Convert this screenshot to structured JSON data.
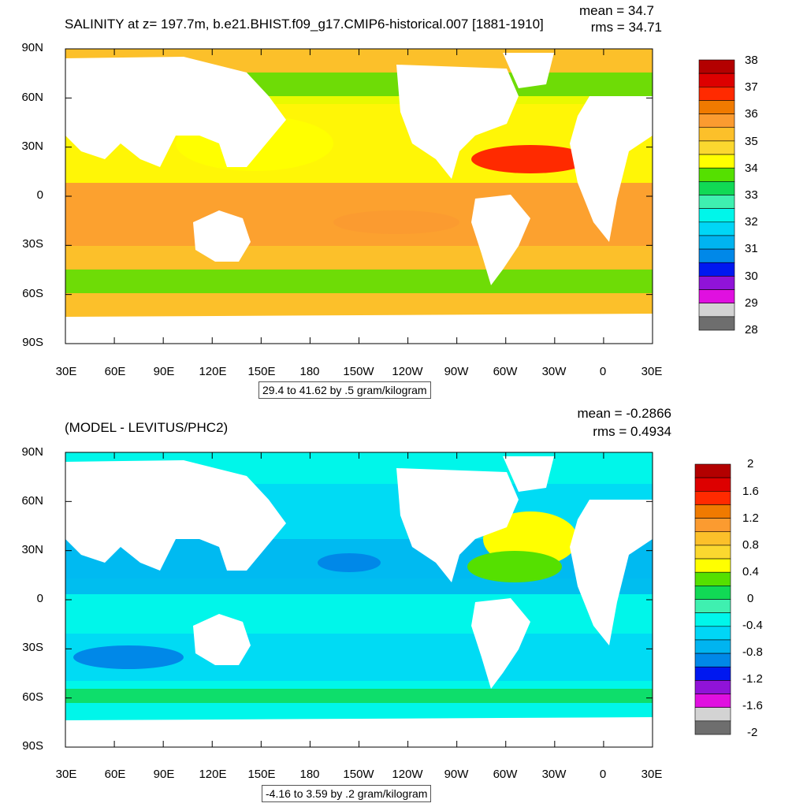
{
  "panels": [
    {
      "title": "SALINITY at z= 197.7m, b.e21.BHIST.f09_g17.CMIP6-historical.007 [1881-1910]",
      "stats": {
        "mean": "mean = 34.7",
        "rms": "rms = 34.71"
      },
      "lat_labels": [
        "90N",
        "60N",
        "30N",
        "0",
        "30S",
        "60S",
        "90S"
      ],
      "lon_labels": [
        "30E",
        "60E",
        "90E",
        "120E",
        "150E",
        "180",
        "150W",
        "120W",
        "90W",
        "60W",
        "30W",
        "0",
        "30E"
      ],
      "contour_info": "29.4 to 41.62 by .5 gram/kilogram",
      "colorbar": {
        "labels": [
          "38",
          "37",
          "36",
          "35",
          "34",
          "33",
          "32",
          "31",
          "30",
          "29",
          "28"
        ],
        "colors": [
          "#b30000",
          "#dd0000",
          "#ff2a00",
          "#f07a00",
          "#fb9b30",
          "#fcc02a",
          "#fbd82f",
          "#ffff00",
          "#55e000",
          "#11d955",
          "#3ff0b0",
          "#00f6ea",
          "#00d6f6",
          "#00b4f0",
          "#0088e8",
          "#0018f0",
          "#9013d8",
          "#e010e0",
          "#d3d3d3",
          "#6e6e6e"
        ]
      }
    },
    {
      "title": "(MODEL - LEVITUS/PHC2)",
      "stats": {
        "mean": "mean = -0.2866",
        "rms": "rms = 0.4934"
      },
      "lat_labels": [
        "90N",
        "60N",
        "30N",
        "0",
        "30S",
        "60S",
        "90S"
      ],
      "lon_labels": [
        "30E",
        "60E",
        "90E",
        "120E",
        "150E",
        "180",
        "150W",
        "120W",
        "90W",
        "60W",
        "30W",
        "0",
        "30E"
      ],
      "contour_info": "-4.16 to 3.59 by .2 gram/kilogram",
      "colorbar": {
        "labels": [
          "2",
          "1.6",
          "1.2",
          "0.8",
          "0.4",
          "0",
          "-0.4",
          "-0.8",
          "-1.2",
          "-1.6",
          "-2"
        ],
        "colors": [
          "#b30000",
          "#dd0000",
          "#ff2a00",
          "#f07a00",
          "#fb9b30",
          "#fcc02a",
          "#fbd82f",
          "#ffff00",
          "#55e000",
          "#11d955",
          "#3ff0b0",
          "#00f6ea",
          "#00d6f6",
          "#00b4f0",
          "#0088e8",
          "#0018f0",
          "#9013d8",
          "#e010e0",
          "#d3d3d3",
          "#6e6e6e"
        ]
      }
    }
  ],
  "colors": {
    "land": "#ffffff",
    "frame": "#000000"
  }
}
